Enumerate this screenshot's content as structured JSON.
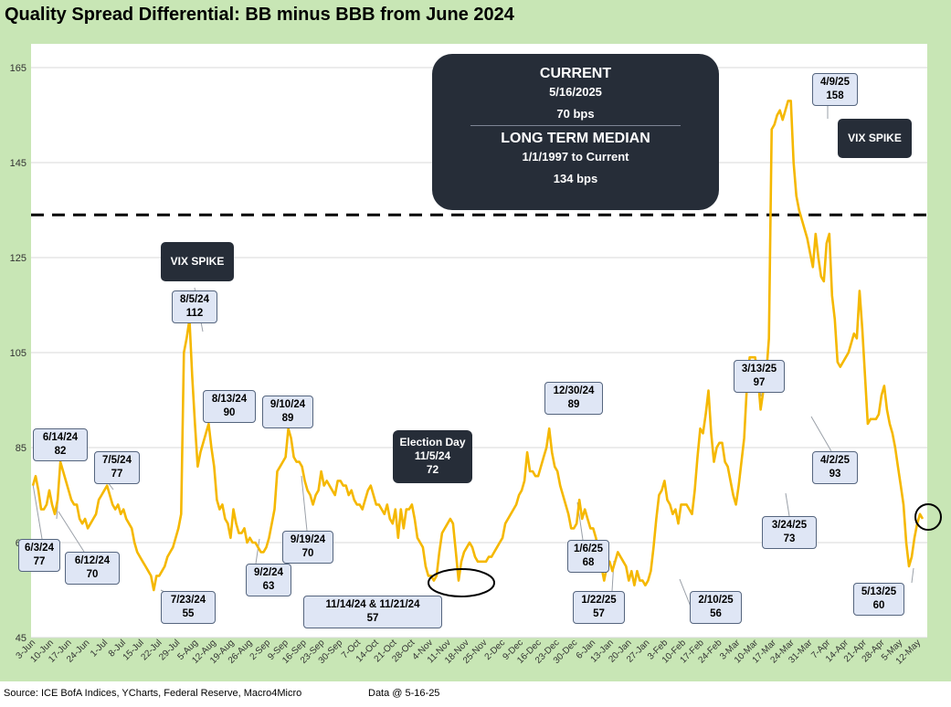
{
  "title": "Quality Spread Differential: BB minus BBB from June 2024",
  "footer": {
    "source": "Source: ICE BofA Indices, YCharts, Federal Reserve, Macro4Micro",
    "as_of": "Data @ 5-16-25"
  },
  "summary_box": {
    "current_label": "CURRENT",
    "current_date": "5/16/2025",
    "current_value": "70 bps",
    "median_label": "LONG TERM MEDIAN",
    "median_range": "1/1/1997 to Current",
    "median_value": "134 bps"
  },
  "chart_data": {
    "type": "line",
    "title": "Quality Spread Differential: BB minus BBB from June 2024",
    "xlabel": "",
    "ylabel": "",
    "ylim": [
      45,
      170
    ],
    "y_ticks": [
      45,
      65,
      85,
      105,
      125,
      145,
      165
    ],
    "x_tick_labels": [
      "3-Jun",
      "10-Jun",
      "17-Jun",
      "24-Jun",
      "1-Jul",
      "8-Jul",
      "15-Jul",
      "22-Jul",
      "29-Jul",
      "5-Aug",
      "12-Aug",
      "19-Aug",
      "26-Aug",
      "2-Sep",
      "9-Sep",
      "16-Sep",
      "23-Sep",
      "30-Sep",
      "7-Oct",
      "14-Oct",
      "21-Oct",
      "28-Oct",
      "4-Nov",
      "11-Nov",
      "18-Nov",
      "25-Nov",
      "2-Dec",
      "9-Dec",
      "16-Dec",
      "23-Dec",
      "30-Dec",
      "6-Jan",
      "13-Jan",
      "20-Jan",
      "27-Jan",
      "3-Feb",
      "10-Feb",
      "17-Feb",
      "24-Feb",
      "3-Mar",
      "10-Mar",
      "17-Mar",
      "24-Mar",
      "31-Mar",
      "7-Apr",
      "14-Apr",
      "21-Apr",
      "28-Apr",
      "5-May",
      "12-May"
    ],
    "grid": true,
    "line_color": "#f5b800",
    "median_line": 134,
    "series": [
      {
        "values": [
          77,
          79,
          76,
          72,
          72,
          73,
          76,
          73,
          71,
          74,
          82,
          80,
          78,
          76,
          74,
          73,
          73,
          70,
          69,
          70,
          68,
          69,
          70,
          71,
          74,
          75,
          76,
          77,
          75,
          73,
          72,
          73,
          71,
          72,
          70,
          69,
          68,
          65,
          63,
          62,
          61,
          60,
          59,
          58,
          55,
          58,
          58,
          59,
          60,
          62,
          63,
          64,
          66,
          68,
          71,
          105,
          108,
          112,
          100,
          90,
          81,
          84,
          86,
          88,
          90,
          85,
          81,
          74,
          72,
          73,
          70,
          69,
          66,
          72,
          69,
          67,
          67,
          68,
          65,
          66,
          65,
          65,
          64,
          63,
          63,
          64,
          66,
          69,
          72,
          80,
          81,
          82,
          83,
          89,
          87,
          83,
          82,
          82,
          81,
          78,
          76,
          75,
          73,
          75,
          76,
          80,
          77,
          78,
          77,
          76,
          75,
          78,
          78,
          77,
          77,
          75,
          76,
          74,
          73,
          73,
          72,
          74,
          76,
          77,
          75,
          73,
          73,
          72,
          71,
          73,
          70,
          69,
          72,
          66,
          72,
          68,
          72,
          72,
          73,
          70,
          66,
          65,
          64,
          60,
          58,
          58,
          57,
          58,
          63,
          67,
          68,
          69,
          70,
          69,
          63,
          57,
          61,
          63,
          64,
          65,
          64,
          62,
          61,
          61,
          61,
          61,
          62,
          62,
          63,
          64,
          65,
          66,
          69,
          70,
          71,
          72,
          73,
          75,
          76,
          78,
          84,
          80,
          80,
          79,
          79,
          81,
          83,
          85,
          89,
          84,
          81,
          80,
          77,
          75,
          73,
          71,
          68,
          68,
          69,
          74,
          70,
          72,
          70,
          68,
          68,
          66,
          63,
          60,
          57,
          60,
          61,
          59,
          61,
          63,
          62,
          61,
          60,
          57,
          59,
          56,
          59,
          57,
          57,
          56,
          57,
          59,
          64,
          70,
          75,
          76,
          78,
          74,
          73,
          71,
          72,
          69,
          73,
          73,
          73,
          72,
          71,
          76,
          83,
          89,
          88,
          92,
          97,
          88,
          82,
          85,
          86,
          86,
          82,
          81,
          78,
          75,
          73,
          77,
          82,
          87,
          98,
          104,
          104,
          104,
          100,
          93,
          97,
          100,
          108,
          152,
          153,
          155,
          156,
          154,
          156,
          158,
          158,
          145,
          138,
          135,
          133,
          131,
          129,
          126,
          123,
          130,
          125,
          121,
          120,
          128,
          130,
          117,
          112,
          103,
          102,
          103,
          104,
          105,
          107,
          109,
          108,
          118,
          110,
          100,
          90,
          91,
          91,
          91,
          92,
          96,
          98,
          93,
          90,
          88,
          85,
          81,
          77,
          73,
          65,
          60,
          62,
          66,
          69,
          71,
          70
        ]
      }
    ],
    "annotations": [
      {
        "date": "6/3/24",
        "value": "77"
      },
      {
        "date": "6/14/24",
        "value": "82"
      },
      {
        "date": "6/12/24",
        "value": "70"
      },
      {
        "date": "7/5/24",
        "value": "77"
      },
      {
        "date": "7/23/24",
        "value": "55"
      },
      {
        "date": "8/5/24",
        "value": "112"
      },
      {
        "date": "8/13/24",
        "value": "90"
      },
      {
        "date": "9/2/24",
        "value": "63"
      },
      {
        "date": "9/10/24",
        "value": "89"
      },
      {
        "date": "9/19/24",
        "value": "70"
      },
      {
        "date": "11/5/24",
        "value": "72",
        "label": "Election Day"
      },
      {
        "date": "11/14/24 & 11/21/24",
        "value": "57"
      },
      {
        "date": "12/30/24",
        "value": "89"
      },
      {
        "date": "1/6/25",
        "value": "68"
      },
      {
        "date": "1/22/25",
        "value": "57"
      },
      {
        "date": "2/10/25",
        "value": "56"
      },
      {
        "date": "3/13/25",
        "value": "97"
      },
      {
        "date": "3/24/25",
        "value": "73"
      },
      {
        "date": "4/9/25",
        "value": "158"
      },
      {
        "date": "4/2/25",
        "value": "93"
      },
      {
        "date": "5/13/25",
        "value": "60"
      }
    ],
    "vix_spike_label": "VIX SPIKE"
  }
}
